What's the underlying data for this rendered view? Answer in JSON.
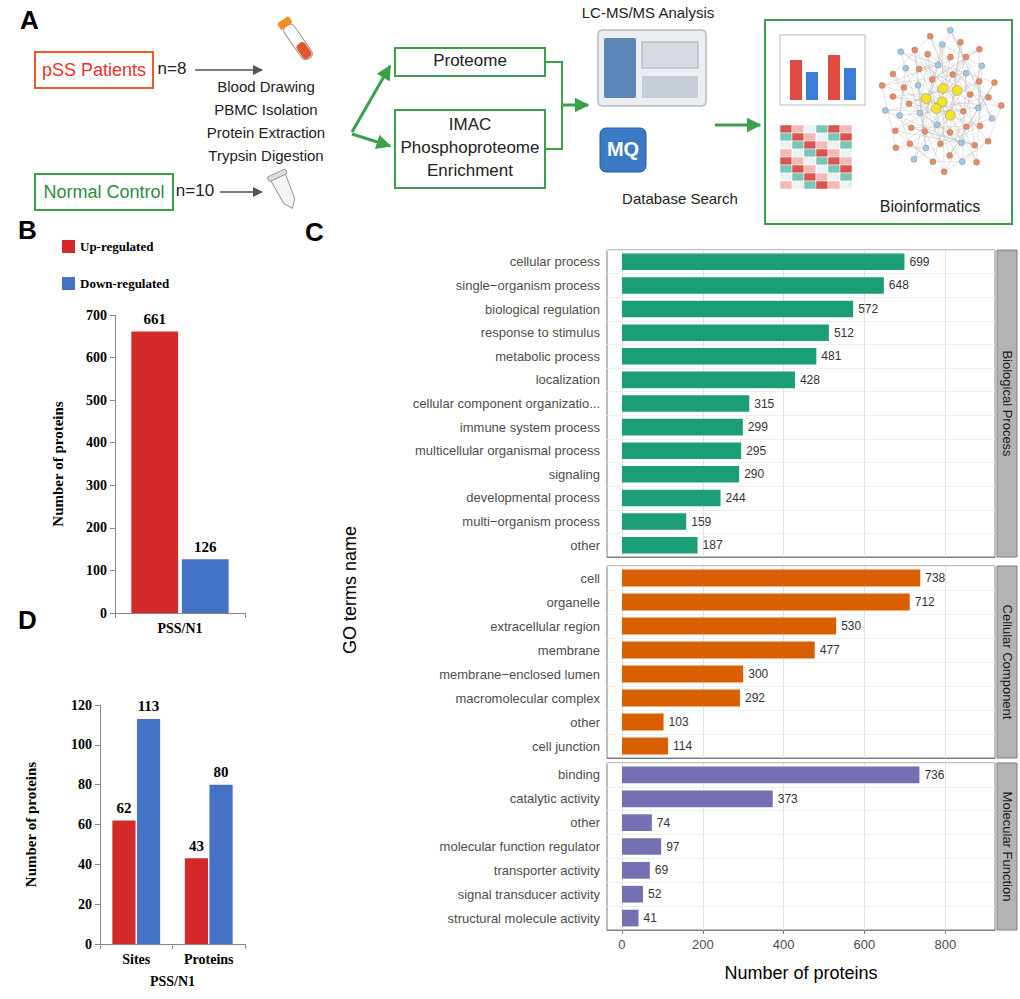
{
  "diagram": {
    "panel_label": "A",
    "groups": [
      {
        "name": "pSS Patients",
        "n": "n=8"
      },
      {
        "name": "Normal Control",
        "n": "n=10"
      }
    ],
    "steps": [
      "Blood Drawing",
      "PBMC Isolation",
      "Protein Extraction",
      "Trypsin Digestion"
    ],
    "branches": [
      [
        "Proteome"
      ],
      [
        "IMAC",
        "Phosphoproteome",
        "Enrichment"
      ]
    ],
    "analysis": "LC-MS/MS Analysis",
    "software": "MQ",
    "search": "Database Search",
    "output": "Bioinformatics"
  },
  "chart_data": [
    {
      "panel_label": "B",
      "type": "bar",
      "categories": [
        "PSS/N1"
      ],
      "series": [
        {
          "name": "Up-regulated",
          "color": "#d42a2a",
          "values": [
            661
          ]
        },
        {
          "name": "Down-regulated",
          "color": "#4472c4",
          "values": [
            126
          ]
        }
      ],
      "y_label": "Number of proteins",
      "ylim": [
        0,
        700
      ],
      "yticks": [
        0,
        100,
        200,
        300,
        400,
        500,
        600,
        700
      ],
      "legend": "top-left",
      "data_labels": true,
      "grid": false
    },
    {
      "panel_label": "C",
      "type": "bar",
      "orientation": "horizontal",
      "x_label": "Number of proteins",
      "y_label": "GO terms name",
      "xlim": [
        -37,
        923
      ],
      "xticks": [
        0,
        200,
        400,
        600,
        800
      ],
      "data_labels": true,
      "grid": true,
      "facets": [
        {
          "name": "Biological Process",
          "color": "#1b9e77",
          "categories": [
            "cellular process",
            "single−organism process",
            "biological regulation",
            "response to stimulus",
            "metabolic process",
            "localization",
            "cellular component organizatio...",
            "immune system process",
            "multicellular organismal process",
            "signaling",
            "developmental process",
            "multi−organism process",
            "other"
          ],
          "values": [
            699,
            648,
            572,
            512,
            481,
            428,
            315,
            299,
            295,
            290,
            244,
            159,
            187
          ]
        },
        {
          "name": "Cellular Component",
          "color": "#d95f02",
          "categories": [
            "cell",
            "organelle",
            "extracellular region",
            "membrane",
            "membrane−enclosed lumen",
            "macromolecular complex",
            "other",
            "cell junction"
          ],
          "values": [
            738,
            712,
            530,
            477,
            300,
            292,
            103,
            114
          ]
        },
        {
          "name": "Molecular Function",
          "color": "#7570b3",
          "categories": [
            "binding",
            "catalytic activity",
            "other",
            "molecular function regulator",
            "transporter activity",
            "signal transducer activity",
            "structural molecule activity"
          ],
          "values": [
            736,
            373,
            74,
            97,
            69,
            52,
            41
          ]
        }
      ]
    },
    {
      "panel_label": "D",
      "type": "bar",
      "categories": [
        "Sites",
        "Proteins"
      ],
      "series": [
        {
          "color": "#d42a2a",
          "values": [
            62,
            43
          ]
        },
        {
          "color": "#4472c4",
          "values": [
            113,
            80
          ]
        }
      ],
      "x_label": "PSS/N1",
      "y_label": "Number of proteins",
      "ylim": [
        0,
        120
      ],
      "yticks": [
        0,
        20,
        40,
        60,
        80,
        100,
        120
      ],
      "data_labels": true,
      "grid": false
    }
  ]
}
